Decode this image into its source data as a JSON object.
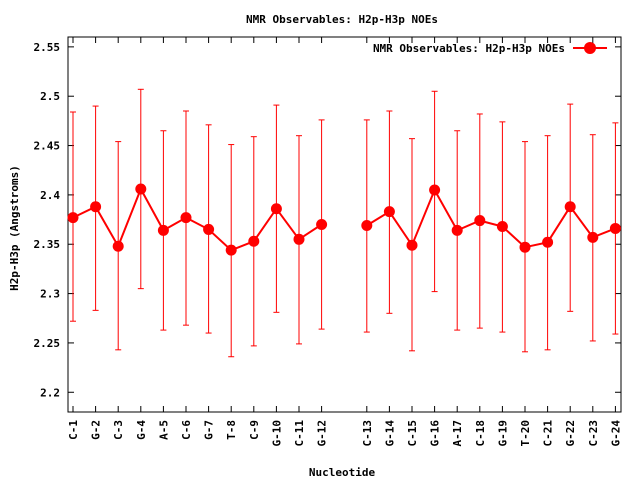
{
  "chart_data": {
    "type": "line",
    "title": "NMR Observables: H2p-H3p NOEs",
    "xlabel": "Nucleotide",
    "ylabel": "H2p-H3p (Angstroms)",
    "ylim": [
      2.18,
      2.56
    ],
    "yticks": [
      "2.2",
      "2.25",
      "2.3",
      "2.35",
      "2.4",
      "2.45",
      "2.5",
      "2.55"
    ],
    "ytick_values": [
      2.2,
      2.25,
      2.3,
      2.35,
      2.4,
      2.45,
      2.5,
      2.55
    ],
    "legend_position": "top-right",
    "grid": false,
    "error_bars": true,
    "categories": [
      "C-1",
      "G-2",
      "C-3",
      "G-4",
      "A-5",
      "C-6",
      "G-7",
      "T-8",
      "C-9",
      "G-10",
      "C-11",
      "G-12",
      "C-13",
      "G-14",
      "C-15",
      "G-16",
      "A-17",
      "C-18",
      "G-19",
      "T-20",
      "C-21",
      "G-22",
      "C-23",
      "G-24"
    ],
    "gap_after_index": 11,
    "series": [
      {
        "name": "NMR Observables: H2p-H3p NOEs",
        "color": "#ff0000",
        "values": [
          2.377,
          2.388,
          2.348,
          2.406,
          2.364,
          2.377,
          2.365,
          2.344,
          2.353,
          2.386,
          2.355,
          2.37,
          2.369,
          2.383,
          2.349,
          2.405,
          2.364,
          2.374,
          2.368,
          2.347,
          2.352,
          2.388,
          2.357,
          2.366
        ],
        "err_low": [
          2.272,
          2.283,
          2.243,
          2.305,
          2.263,
          2.268,
          2.26,
          2.236,
          2.247,
          2.281,
          2.249,
          2.264,
          2.261,
          2.28,
          2.242,
          2.302,
          2.263,
          2.265,
          2.261,
          2.241,
          2.243,
          2.282,
          2.252,
          2.259
        ],
        "err_high": [
          2.484,
          2.49,
          2.454,
          2.507,
          2.465,
          2.485,
          2.471,
          2.451,
          2.459,
          2.491,
          2.46,
          2.476,
          2.476,
          2.485,
          2.457,
          2.505,
          2.465,
          2.482,
          2.474,
          2.454,
          2.46,
          2.492,
          2.461,
          2.473
        ]
      }
    ]
  }
}
